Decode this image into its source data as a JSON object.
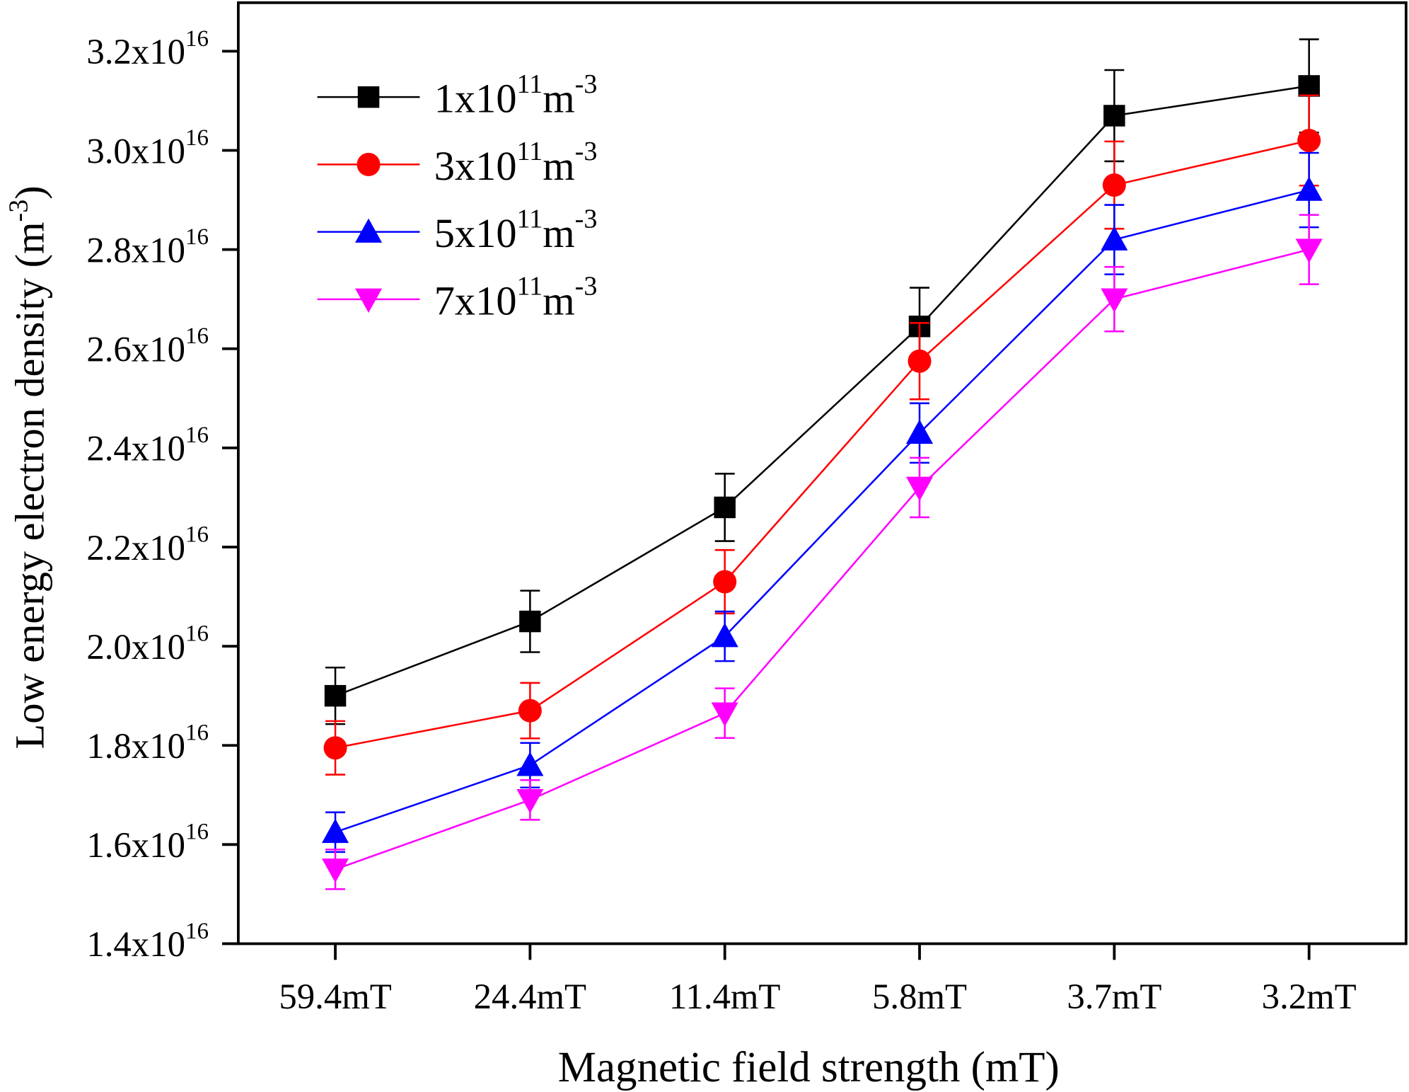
{
  "chart_data": {
    "type": "line",
    "title": "",
    "xlabel": "Magnetic field strength (mT)",
    "ylabel": "Low energy electron density (m -3)",
    "ylabel_parts": {
      "main": "Low energy electron density (m",
      "sup": "-3",
      "close": ")"
    },
    "categories": [
      "59.4mT",
      "24.4mT",
      "11.4mT",
      "5.8mT",
      "3.7mT",
      "3.2mT"
    ],
    "ylim": [
      1.4e+16,
      3.2e+16
    ],
    "yticks": [
      {
        "mantissa": "1.4x10",
        "exp": "16",
        "value": 1.4e+16
      },
      {
        "mantissa": "1.6x10",
        "exp": "16",
        "value": 1.6e+16
      },
      {
        "mantissa": "1.8x10",
        "exp": "16",
        "value": 1.8e+16
      },
      {
        "mantissa": "2.0x10",
        "exp": "16",
        "value": 2e+16
      },
      {
        "mantissa": "2.2x10",
        "exp": "16",
        "value": 2.2e+16
      },
      {
        "mantissa": "2.4x10",
        "exp": "16",
        "value": 2.4e+16
      },
      {
        "mantissa": "2.6x10",
        "exp": "16",
        "value": 2.6e+16
      },
      {
        "mantissa": "2.8x10",
        "exp": "16",
        "value": 2.8e+16
      },
      {
        "mantissa": "3.0x10",
        "exp": "16",
        "value": 3e+16
      },
      {
        "mantissa": "3.2x10",
        "exp": "16",
        "value": 3.2e+16
      }
    ],
    "grid": false,
    "legend_position": "top-left",
    "series": [
      {
        "name": "1x10^11 m^-3",
        "label": {
          "base": "1x10",
          "exp1": "11",
          "unit": "m",
          "exp2": "-3"
        },
        "color": "#000000",
        "marker": "square",
        "values": [
          1.9e+16,
          2.05e+16,
          2.28e+16,
          2.645e+16,
          3.07e+16,
          3.13e+16
        ],
        "errors": [
          570000000000000.0,
          620000000000000.0,
          680000000000000.0,
          780000000000000.0,
          920000000000000.0,
          940000000000000.0
        ]
      },
      {
        "name": "3x10^11 m^-3",
        "label": {
          "base": "3x10",
          "exp1": "11",
          "unit": "m",
          "exp2": "-3"
        },
        "color": "#ff0000",
        "marker": "circle",
        "values": [
          1.795e+16,
          1.87e+16,
          2.13e+16,
          2.575e+16,
          2.93e+16,
          3.02e+16
        ],
        "errors": [
          540000000000000.0,
          560000000000000.0,
          640000000000000.0,
          770000000000000.0,
          880000000000000.0,
          910000000000000.0
        ]
      },
      {
        "name": "5x10^11 m^-3",
        "label": {
          "base": "5x10",
          "exp1": "11",
          "unit": "m",
          "exp2": "-3"
        },
        "color": "#0000ff",
        "marker": "triangle-up",
        "values": [
          1.625e+16,
          1.76e+16,
          2.02e+16,
          2.43e+16,
          2.82e+16,
          2.92e+16
        ],
        "errors": [
          400000000000000.0,
          450000000000000.0,
          500000000000000.0,
          600000000000000.0,
          700000000000000.0,
          750000000000000.0
        ]
      },
      {
        "name": "7x10^11 m^-3",
        "label": {
          "base": "7x10",
          "exp1": "11",
          "unit": "m",
          "exp2": "-3"
        },
        "color": "#ff00ff",
        "marker": "triangle-down",
        "values": [
          1.55e+16,
          1.69e+16,
          1.865e+16,
          2.32e+16,
          2.7e+16,
          2.8e+16
        ],
        "errors": [
          400000000000000.0,
          400000000000000.0,
          500000000000000.0,
          600000000000000.0,
          650000000000000.0,
          700000000000000.0
        ]
      }
    ]
  }
}
